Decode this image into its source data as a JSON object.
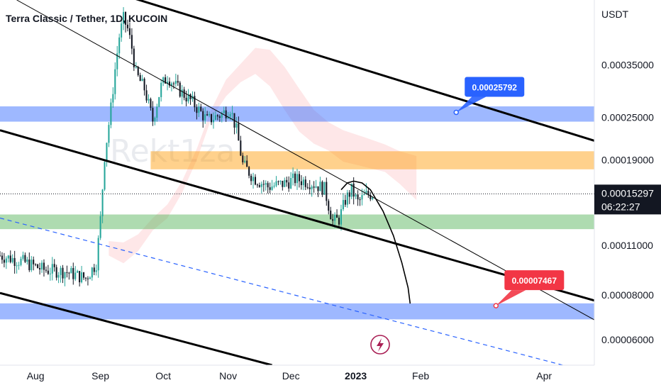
{
  "chart_data": {
    "type": "candlestick",
    "title": "Terra Classic / Tether, 1D, KUCOIN",
    "currency": "USDT",
    "watermark": "Rekt1za",
    "y_scale": "log",
    "ylim": [
      5.1e-05,
      0.00053
    ],
    "y_ticks": [
      {
        "label": "0.00035000",
        "value": 0.00035
      },
      {
        "label": "0.00025000",
        "value": 0.00025
      },
      {
        "label": "0.00019000",
        "value": 0.00019
      },
      {
        "label": "0.00011000",
        "value": 0.00011
      },
      {
        "label": "0.00008000",
        "value": 8e-05
      },
      {
        "label": "0.00006000",
        "value": 6e-05
      }
    ],
    "x_range": [
      "2022-07-15",
      "2023-04-25"
    ],
    "x_ticks": [
      {
        "label": "Aug",
        "date": "2022-08-01"
      },
      {
        "label": "Sep",
        "date": "2022-09-01"
      },
      {
        "label": "Oct",
        "date": "2022-10-01"
      },
      {
        "label": "Nov",
        "date": "2022-11-01"
      },
      {
        "label": "Dec",
        "date": "2022-12-01"
      },
      {
        "label": "2023",
        "date": "2023-01-01"
      },
      {
        "label": "Feb",
        "date": "2023-02-01"
      },
      {
        "label": "Apr",
        "date": "2023-04-01"
      }
    ],
    "last_price": {
      "label": "0.00015297",
      "value": 0.00015297,
      "countdown": "06:22:27"
    },
    "callouts": [
      {
        "label": "0.00025792",
        "value": 0.00025792,
        "date": "2023-02-18",
        "color": "#2962ff"
      },
      {
        "label": "0.00007467",
        "value": 7.467e-05,
        "date": "2023-03-09",
        "color": "#f23645"
      }
    ],
    "zones": [
      {
        "from": "2022-07-15",
        "to": "2023-04-25",
        "low": 0.000243,
        "high": 0.000268,
        "color": "#2962ff",
        "opacity": 0.45
      },
      {
        "from": "2022-09-25",
        "to": "2023-04-25",
        "low": 0.000179,
        "high": 0.000201,
        "color": "#ff9800",
        "opacity": 0.45
      },
      {
        "from": "2022-07-15",
        "to": "2023-04-25",
        "low": 0.000122,
        "high": 0.000134,
        "color": "#4caf50",
        "opacity": 0.45
      },
      {
        "from": "2022-07-15",
        "to": "2023-04-25",
        "low": 6.84e-05,
        "high": 7.58e-05,
        "color": "#2962ff",
        "opacity": 0.45
      }
    ],
    "trendlines": [
      {
        "from": [
          "2022-09-15",
          0.00054
        ],
        "to": [
          "2023-04-25",
          0.000215
        ],
        "width": 3,
        "color": "#000000"
      },
      {
        "from": [
          "2022-07-15",
          0.00023
        ],
        "to": [
          "2023-04-25",
          7.72e-05
        ],
        "width": 3,
        "color": "#000000"
      },
      {
        "from": [
          "2022-07-15",
          8.1e-05
        ],
        "to": [
          "2022-11-22",
          5.1e-05
        ],
        "width": 3,
        "color": "#000000"
      },
      {
        "from": [
          "2022-07-23",
          0.00053
        ],
        "to": [
          "2023-04-25",
          6.82e-05
        ],
        "width": 1,
        "color": "#000000"
      },
      {
        "from": [
          "2022-07-15",
          0.000131
        ],
        "to": [
          "2023-04-10",
          5.1e-05
        ],
        "width": 1.2,
        "color": "#2962ff",
        "dashed": true
      }
    ],
    "projection": [
      [
        "2022-12-25",
        0.000157
      ],
      [
        "2022-12-28",
        0.000164
      ],
      [
        "2022-12-31",
        0.000166
      ],
      [
        "2023-01-04",
        0.000164
      ],
      [
        "2023-01-08",
        0.000157
      ],
      [
        "2023-01-14",
        0.000137
      ],
      [
        "2023-01-19",
        0.000117
      ],
      [
        "2023-01-23",
        9.85e-05
      ],
      [
        "2023-01-26",
        8.38e-05
      ],
      [
        "2023-01-27",
        7.57e-05
      ]
    ],
    "cloud": [
      [
        "2022-09-05",
        0.000103,
        0.000113
      ],
      [
        "2022-09-12",
        9.8e-05,
        0.000112
      ],
      [
        "2022-09-19",
        0.000106,
        0.000118
      ],
      [
        "2022-09-26",
        0.000121,
        0.000131
      ],
      [
        "2022-10-03",
        0.000131,
        0.000143
      ],
      [
        "2022-10-10",
        0.000154,
        0.000166
      ],
      [
        "2022-10-17",
        0.00019,
        0.000204
      ],
      [
        "2022-10-24",
        0.000248,
        0.000263
      ],
      [
        "2022-10-31",
        0.000286,
        0.000318
      ],
      [
        "2022-11-07",
        0.000313,
        0.000352
      ],
      [
        "2022-11-14",
        0.00033,
        0.00039
      ],
      [
        "2022-11-21",
        0.000305,
        0.000385
      ],
      [
        "2022-11-28",
        0.000262,
        0.000345
      ],
      [
        "2022-12-05",
        0.000228,
        0.0003
      ],
      [
        "2022-12-12",
        0.000211,
        0.000262
      ],
      [
        "2022-12-19",
        0.000202,
        0.000242
      ],
      [
        "2022-12-26",
        0.000188,
        0.00023
      ],
      [
        "2023-01-05",
        0.000182,
        0.00022
      ],
      [
        "2023-01-15",
        0.000176,
        0.00021
      ],
      [
        "2023-01-22",
        0.000163,
        0.000201
      ],
      [
        "2023-01-30",
        0.000147,
        0.000195
      ]
    ],
    "anchors": [
      [
        "2022-07-15",
        0.000103
      ],
      [
        "2022-07-26",
        9.9e-05
      ],
      [
        "2022-08-05",
        9.4e-05
      ],
      [
        "2022-08-15",
        9.3e-05
      ],
      [
        "2022-08-25",
        8.9e-05
      ],
      [
        "2022-08-30",
        9.8e-05
      ],
      [
        "2022-09-01",
        0.00013
      ],
      [
        "2022-09-03",
        0.000195
      ],
      [
        "2022-09-06",
        0.000265
      ],
      [
        "2022-09-08",
        0.00034
      ],
      [
        "2022-09-10",
        0.00042
      ],
      [
        "2022-09-12",
        0.00047
      ],
      [
        "2022-09-14",
        0.00044
      ],
      [
        "2022-09-16",
        0.00039
      ],
      [
        "2022-09-18",
        0.00033
      ],
      [
        "2022-09-22",
        0.0003
      ],
      [
        "2022-09-26",
        0.000245
      ],
      [
        "2022-09-30",
        0.000305
      ],
      [
        "2022-10-03",
        0.000325
      ],
      [
        "2022-10-08",
        0.0003
      ],
      [
        "2022-10-15",
        0.000275
      ],
      [
        "2022-10-22",
        0.000245
      ],
      [
        "2022-10-29",
        0.000255
      ],
      [
        "2022-11-02",
        0.000265
      ],
      [
        "2022-11-05",
        0.00023
      ],
      [
        "2022-11-08",
        0.000185
      ],
      [
        "2022-11-13",
        0.00017
      ],
      [
        "2022-11-20",
        0.00016
      ],
      [
        "2022-11-27",
        0.000163
      ],
      [
        "2022-12-03",
        0.000168
      ],
      [
        "2022-12-10",
        0.000165
      ],
      [
        "2022-12-17",
        0.000158
      ],
      [
        "2022-12-21",
        0.000128
      ],
      [
        "2022-12-24",
        0.00013
      ],
      [
        "2022-12-27",
        0.000147
      ],
      [
        "2022-12-30",
        0.000157
      ],
      [
        "2023-01-02",
        0.000145
      ],
      [
        "2023-01-06",
        0.000152
      ],
      [
        "2023-01-09",
        0.000153
      ]
    ]
  }
}
